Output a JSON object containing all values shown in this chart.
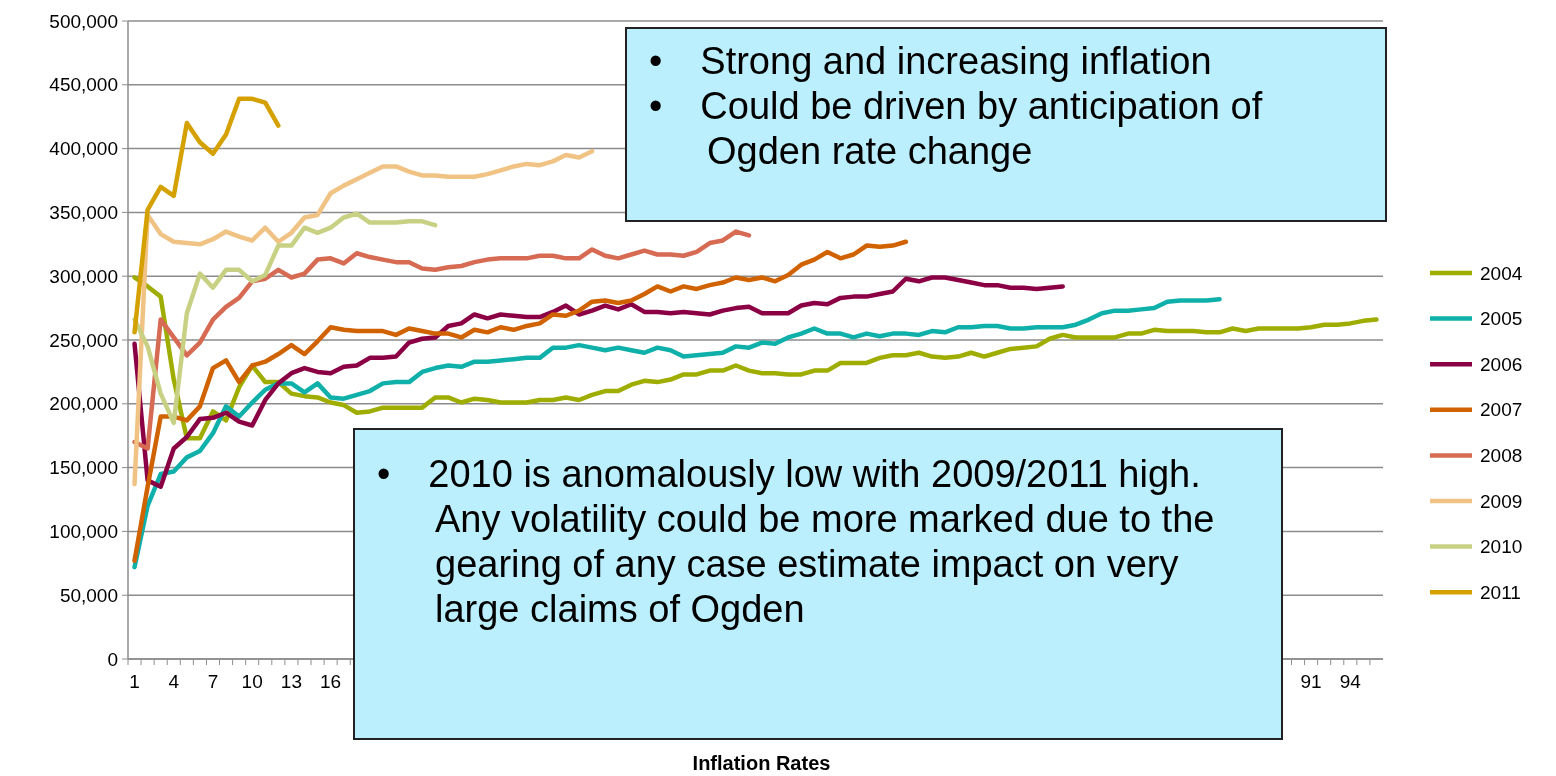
{
  "chart_data": {
    "type": "line",
    "xlabel": "Inflation Rates",
    "categories": [
      "1",
      null,
      null,
      "4",
      null,
      null,
      "7",
      null,
      null,
      "10",
      null,
      null,
      "13",
      null,
      null,
      "16",
      null,
      null,
      null,
      null,
      null,
      null,
      null,
      null,
      null,
      null,
      null,
      null,
      null,
      null,
      null,
      null,
      null,
      null,
      null,
      null,
      null,
      null,
      null,
      null,
      null,
      null,
      null,
      null,
      null,
      null,
      null,
      null,
      null,
      null,
      null,
      null,
      null,
      null,
      null,
      null,
      null,
      null,
      null,
      null,
      null,
      null,
      null,
      null,
      null,
      null,
      null,
      null,
      null,
      null,
      null,
      null,
      null,
      null,
      null,
      null,
      null,
      null,
      null,
      null,
      null,
      null,
      null,
      null,
      null,
      null,
      null,
      null,
      null,
      null,
      "91",
      null,
      null,
      "94",
      null,
      null
    ],
    "ylim": [
      0,
      500000
    ],
    "yticks": [
      {
        "value": 0,
        "label": "0"
      },
      {
        "value": 50000,
        "label": "50,000"
      },
      {
        "value": 100000,
        "label": "100,000"
      },
      {
        "value": 150000,
        "label": "150,000"
      },
      {
        "value": 200000,
        "label": "200,000"
      },
      {
        "value": 250000,
        "label": "250,000"
      },
      {
        "value": 300000,
        "label": "300,000"
      },
      {
        "value": 350000,
        "label": "350,000"
      },
      {
        "value": 400000,
        "label": "400,000"
      },
      {
        "value": 450000,
        "label": "450,000"
      },
      {
        "value": 500000,
        "label": "500,000"
      }
    ],
    "grid": "y",
    "legend": "right",
    "line_style": "solid",
    "annotations": [
      "• Strong and increasing inflation",
      "• Could be driven by anticipation of Ogden rate change",
      "• 2010 is anomalously low with 2009/2011 high.  Any volatility could be more marked due to the gearing of any case estimate impact on very large claims of Ogden"
    ],
    "series": [
      {
        "name": "2004",
        "color": "#9fad00",
        "values": [
          299000,
          292000,
          284000,
          219000,
          173000,
          173000,
          194000,
          187000,
          213000,
          230000,
          217000,
          217000,
          208000,
          206000,
          205000,
          201000,
          199000,
          193000,
          194000,
          197000,
          197000,
          197000,
          197000,
          205000,
          205000,
          201000,
          204000,
          203000,
          201000,
          201000,
          201000,
          203000,
          203000,
          205000,
          203000,
          207000,
          210000,
          210000,
          215000,
          218000,
          217000,
          219000,
          223000,
          223000,
          226000,
          226000,
          230000,
          226000,
          224000,
          224000,
          223000,
          223000,
          226000,
          226000,
          232000,
          232000,
          232000,
          236000,
          238000,
          238000,
          240000,
          237000,
          236000,
          237000,
          240000,
          237000,
          240000,
          243000,
          244000,
          245000,
          251000,
          254000,
          252000,
          252000,
          252000,
          252000,
          255000,
          255000,
          258000,
          257000,
          257000,
          257000,
          256000,
          256000,
          259000,
          257000,
          259000,
          259000,
          259000,
          259000,
          260000,
          262000,
          262000,
          263000,
          265000,
          266000
        ]
      },
      {
        "name": "2005",
        "color": "#10b0aa",
        "values": [
          72000,
          120000,
          145000,
          147000,
          158000,
          163000,
          177000,
          198000,
          190000,
          201000,
          211000,
          216000,
          216000,
          209000,
          216000,
          205000,
          204000,
          207000,
          210000,
          216000,
          217000,
          217000,
          225000,
          228000,
          230000,
          229000,
          233000,
          233000,
          234000,
          235000,
          236000,
          236000,
          244000,
          244000,
          246000,
          244000,
          242000,
          244000,
          242000,
          240000,
          244000,
          242000,
          237000,
          238000,
          239000,
          240000,
          245000,
          244000,
          248000,
          247000,
          252000,
          255000,
          259000,
          255000,
          255000,
          252000,
          255000,
          253000,
          255000,
          255000,
          254000,
          257000,
          256000,
          260000,
          260000,
          261000,
          261000,
          259000,
          259000,
          260000,
          260000,
          260000,
          262000,
          266000,
          271000,
          273000,
          273000,
          274000,
          275000,
          280000,
          281000,
          281000,
          281000,
          282000,
          null,
          null,
          null,
          null,
          null,
          null,
          null,
          null,
          null,
          null,
          null,
          null
        ]
      },
      {
        "name": "2006",
        "color": "#8b0045",
        "values": [
          247000,
          140000,
          135000,
          165000,
          174000,
          188000,
          189000,
          193000,
          186000,
          183000,
          203000,
          216000,
          224000,
          228000,
          225000,
          224000,
          229000,
          230000,
          236000,
          236000,
          237000,
          248000,
          251000,
          252000,
          261000,
          263000,
          270000,
          267000,
          270000,
          269000,
          268000,
          268000,
          272000,
          277000,
          270000,
          273000,
          277000,
          274000,
          278000,
          272000,
          272000,
          271000,
          272000,
          271000,
          270000,
          273000,
          275000,
          276000,
          271000,
          271000,
          271000,
          277000,
          279000,
          278000,
          283000,
          284000,
          284000,
          286000,
          288000,
          298000,
          296000,
          299000,
          299000,
          297000,
          295000,
          293000,
          293000,
          291000,
          291000,
          290000,
          291000,
          292000,
          null,
          null,
          null,
          null,
          null,
          null,
          null,
          null,
          null,
          null,
          null,
          null,
          null,
          null,
          null,
          null,
          null,
          null,
          null,
          null,
          null,
          null,
          null,
          null
        ]
      },
      {
        "name": "2007",
        "color": "#d06200",
        "values": [
          77000,
          135000,
          190000,
          190000,
          187000,
          198000,
          228000,
          234000,
          217000,
          230000,
          233000,
          239000,
          246000,
          239000,
          249000,
          260000,
          258000,
          257000,
          257000,
          257000,
          254000,
          259000,
          257000,
          255000,
          255000,
          252000,
          258000,
          256000,
          260000,
          258000,
          261000,
          263000,
          270000,
          269000,
          273000,
          280000,
          281000,
          279000,
          281000,
          286000,
          292000,
          288000,
          292000,
          290000,
          293000,
          295000,
          299000,
          297000,
          299000,
          296000,
          301000,
          309000,
          313000,
          319000,
          314000,
          317000,
          324000,
          323000,
          324000,
          327000,
          null,
          null,
          null,
          null,
          null,
          null,
          null,
          null,
          null,
          null,
          null,
          null,
          null,
          null,
          null,
          null,
          null,
          null,
          null,
          null,
          null,
          null,
          null,
          null,
          null,
          null,
          null,
          null,
          null,
          null,
          null,
          null,
          null,
          null,
          null,
          null
        ]
      },
      {
        "name": "2008",
        "color": "#d66a52",
        "values": [
          170000,
          165000,
          266000,
          252000,
          238000,
          248000,
          266000,
          276000,
          283000,
          296000,
          298000,
          305000,
          299000,
          302000,
          313000,
          314000,
          310000,
          318000,
          315000,
          313000,
          311000,
          311000,
          306000,
          305000,
          307000,
          308000,
          311000,
          313000,
          314000,
          314000,
          314000,
          316000,
          316000,
          314000,
          314000,
          321000,
          316000,
          314000,
          317000,
          320000,
          317000,
          317000,
          316000,
          319000,
          326000,
          328000,
          335000,
          332000,
          null,
          null,
          null,
          null,
          null,
          null,
          null,
          null,
          null,
          null,
          null,
          null,
          null,
          null,
          null,
          null,
          null,
          null,
          null,
          null,
          null,
          null,
          null,
          null,
          null,
          null,
          null,
          null,
          null,
          null,
          null,
          null,
          null,
          null,
          null,
          null,
          null,
          null,
          null,
          null,
          null,
          null,
          null,
          null,
          null,
          null,
          null,
          null
        ]
      },
      {
        "name": "2009",
        "color": "#f0c384",
        "values": [
          137000,
          348000,
          333000,
          327000,
          326000,
          325000,
          329000,
          335000,
          331000,
          328000,
          338000,
          327000,
          334000,
          346000,
          348000,
          365000,
          371000,
          376000,
          381000,
          386000,
          386000,
          382000,
          379000,
          379000,
          378000,
          378000,
          378000,
          380000,
          383000,
          386000,
          388000,
          387000,
          390000,
          395000,
          393000,
          398000,
          null,
          null,
          null,
          null,
          null,
          null,
          null,
          null,
          null,
          null,
          null,
          null,
          null,
          null,
          null,
          null,
          null,
          null,
          null,
          null,
          null,
          null,
          null,
          null,
          null,
          null,
          null,
          null,
          null,
          null,
          null,
          null,
          null,
          null,
          null,
          null,
          null,
          null,
          null,
          null,
          null,
          null,
          null,
          null,
          null,
          null,
          null,
          null,
          null,
          null,
          null,
          null,
          null,
          null,
          null,
          null,
          null,
          null,
          null,
          null
        ]
      },
      {
        "name": "2010",
        "color": "#c8d183",
        "values": [
          266000,
          245000,
          208000,
          185000,
          271000,
          302000,
          291000,
          305000,
          305000,
          296000,
          301000,
          324000,
          324000,
          338000,
          334000,
          338000,
          346000,
          349000,
          342000,
          342000,
          342000,
          343000,
          343000,
          340000,
          null,
          null,
          null,
          null,
          null,
          null,
          null,
          null,
          null,
          null,
          null,
          null,
          null,
          null,
          null,
          null,
          null,
          null,
          null,
          null,
          null,
          null,
          null,
          null,
          null,
          null,
          null,
          null,
          null,
          null,
          null,
          null,
          null,
          null,
          null,
          null,
          null,
          null,
          null,
          null,
          null,
          null,
          null,
          null,
          null,
          null,
          null,
          null,
          null,
          null,
          null,
          null,
          null,
          null,
          null,
          null,
          null,
          null,
          null,
          null,
          null,
          null,
          null,
          null,
          null,
          null,
          null,
          null,
          null,
          null,
          null,
          null
        ]
      },
      {
        "name": "2011",
        "color": "#d5a100",
        "values": [
          256000,
          352000,
          370000,
          363000,
          420000,
          405000,
          396000,
          411000,
          439000,
          439000,
          436000,
          418000,
          null,
          null,
          null,
          null,
          null,
          null,
          null,
          null,
          null,
          null,
          null,
          null,
          null,
          null,
          null,
          null,
          null,
          null,
          null,
          null,
          null,
          null,
          null,
          null,
          null,
          null,
          null,
          null,
          null,
          null,
          null,
          null,
          null,
          null,
          null,
          null,
          null,
          null,
          null,
          null,
          null,
          null,
          null,
          null,
          null,
          null,
          null,
          null,
          null,
          null,
          null,
          null,
          null,
          null,
          null,
          null,
          null,
          null,
          null,
          null,
          null,
          null,
          null,
          null,
          null,
          null,
          null,
          null,
          null,
          null,
          null,
          null,
          null,
          null,
          null,
          null,
          null,
          null,
          null,
          null,
          null,
          null,
          null,
          null
        ]
      }
    ]
  }
}
